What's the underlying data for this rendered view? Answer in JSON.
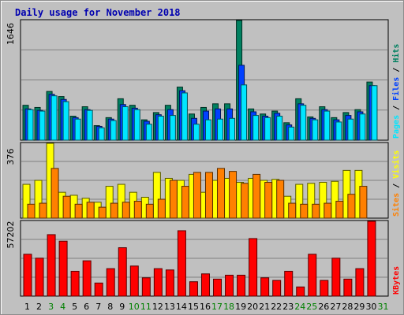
{
  "chart_data": {
    "type": "bar",
    "title": "Daily usage for November 2018",
    "categories": [
      "1",
      "2",
      "3",
      "4",
      "5",
      "6",
      "7",
      "8",
      "9",
      "10",
      "11",
      "12",
      "13",
      "14",
      "15",
      "16",
      "17",
      "18",
      "19",
      "20",
      "21",
      "22",
      "23",
      "24",
      "25",
      "26",
      "27",
      "28",
      "29",
      "30",
      "31"
    ],
    "weekend_days": [
      "3",
      "4",
      "10",
      "11",
      "17",
      "18",
      "24",
      "25",
      "31"
    ],
    "panels": [
      {
        "id": "hits",
        "max_label": "1646",
        "ylim": [
          0,
          1646
        ],
        "legend": [
          {
            "text": "Pages",
            "color": "#00e6ff"
          },
          {
            "text": "Files",
            "color": "#0040ff"
          },
          {
            "text": "Hits",
            "color": "#008060"
          }
        ],
        "series": [
          {
            "name": "Hits",
            "color": "#008060",
            "values": [
              480,
              450,
              670,
              600,
              330,
              460,
              200,
              310,
              570,
              480,
              280,
              380,
              480,
              730,
              360,
              450,
              500,
              500,
              1646,
              430,
              360,
              400,
              240,
              570,
              320,
              460,
              310,
              380,
              420,
              800,
              0
            ]
          },
          {
            "name": "Files",
            "color": "#0040ff",
            "values": [
              430,
              410,
              630,
              560,
              310,
              420,
              190,
              290,
              490,
              440,
              260,
              350,
              420,
              680,
              300,
              400,
              430,
              430,
              1030,
              390,
              330,
              370,
              210,
              500,
              300,
              420,
              280,
              340,
              390,
              750,
              0
            ]
          },
          {
            "name": "Pages",
            "color": "#00e6ff",
            "values": [
              420,
              400,
              610,
              530,
              290,
              410,
              170,
              270,
              460,
              420,
              220,
              330,
              340,
              650,
              220,
              280,
              290,
              300,
              760,
              340,
              310,
              330,
              180,
              480,
              280,
              400,
              250,
              290,
              360,
              750,
              0
            ]
          }
        ]
      },
      {
        "id": "visits",
        "max_label": "376",
        "ylim": [
          0,
          376
        ],
        "legend": [
          {
            "text": "Sites",
            "color": "#ff8000"
          },
          {
            "text": "Visits",
            "color": "#ffff00"
          }
        ],
        "series": [
          {
            "name": "Visits",
            "color": "#ffff00",
            "values": [
              170,
              190,
              376,
              130,
              115,
              100,
              80,
              160,
              170,
              130,
              105,
              230,
              200,
              190,
              220,
              130,
              190,
              200,
              180,
              200,
              190,
              195,
              110,
              170,
              175,
              180,
              185,
              240,
              240,
              0,
              0
            ]
          },
          {
            "name": "Sites",
            "color": "#ff8000",
            "values": [
              70,
              75,
              250,
              110,
              70,
              80,
              55,
              75,
              80,
              85,
              70,
              95,
              190,
              160,
              230,
              230,
              250,
              235,
              175,
              220,
              180,
              190,
              75,
              70,
              70,
              75,
              85,
              120,
              160,
              0,
              0
            ]
          }
        ]
      },
      {
        "id": "kbytes",
        "max_label": "57202",
        "ylim": [
          0,
          57202
        ],
        "legend": [
          {
            "text": "KBytes",
            "color": "#ff0000"
          }
        ],
        "series": [
          {
            "name": "KBytes",
            "color": "#ff0000",
            "values": [
              32000,
              29000,
              47000,
              42000,
              19000,
              27000,
              10000,
              21000,
              37000,
              23000,
              14000,
              21000,
              20000,
              50000,
              11000,
              17000,
              13000,
              16000,
              16000,
              44000,
              14000,
              12000,
              19000,
              7000,
              32000,
              12000,
              29000,
              13000,
              21000,
              57202,
              0
            ]
          }
        ]
      }
    ]
  }
}
